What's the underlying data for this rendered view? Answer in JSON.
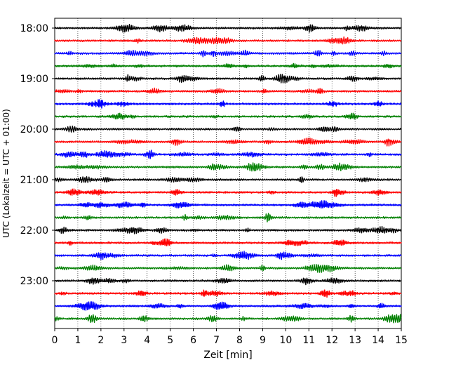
{
  "chart_data": {
    "type": "line",
    "title": "",
    "xlabel": "Zeit  [min]",
    "ylabel": "UTC (Lokalzeit = UTC + 01:00)",
    "xlim": [
      0,
      15
    ],
    "x_ticks": [
      0,
      1,
      2,
      3,
      4,
      5,
      6,
      7,
      8,
      9,
      10,
      11,
      12,
      13,
      14,
      15
    ],
    "x_tick_labels": [
      "0",
      "1",
      "2",
      "3",
      "4",
      "5",
      "6",
      "7",
      "8",
      "9",
      "10",
      "11",
      "12",
      "13",
      "14",
      "15"
    ],
    "y_tick_labels": [
      "18:00",
      "19:00",
      "20:00",
      "21:00",
      "22:00",
      "23:00"
    ],
    "trace_interval_minutes": 15,
    "start_time": "18:00",
    "trace_count": 24,
    "trace_colors": [
      "#000000",
      "#ff0000",
      "#0000ff",
      "#008000"
    ],
    "vertical_grid": true,
    "grid_style": "dotted",
    "legend": "none"
  }
}
